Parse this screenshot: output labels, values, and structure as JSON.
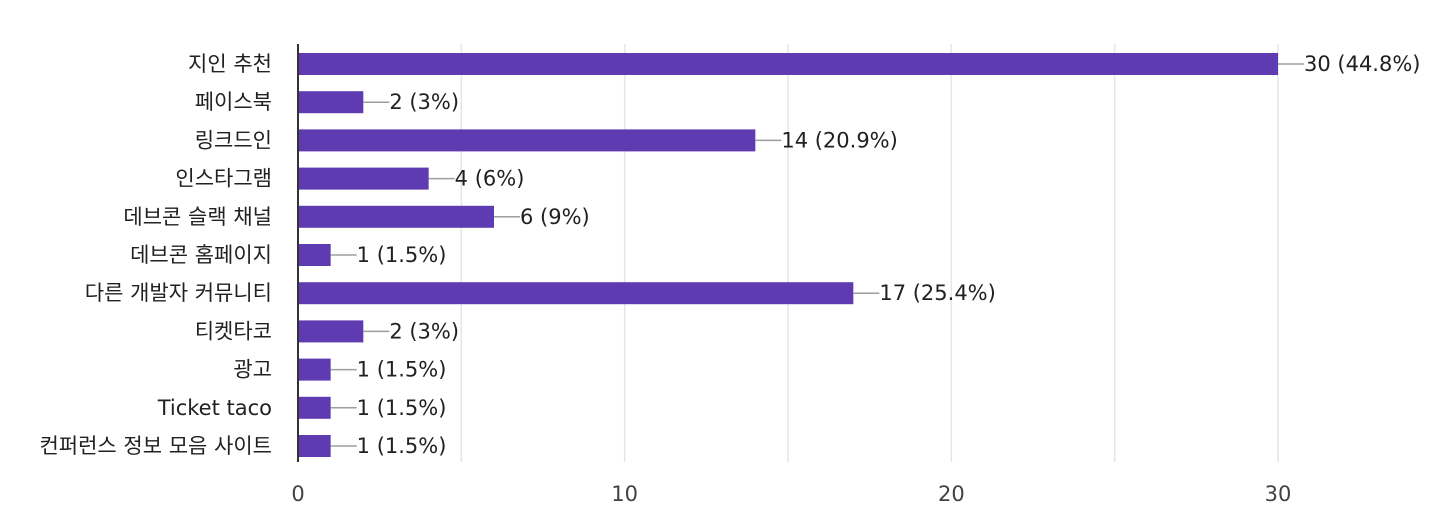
{
  "chart_data": {
    "type": "bar",
    "orientation": "horizontal",
    "categories": [
      "지인 추천",
      "페이스북",
      "링크드인",
      "인스타그램",
      "데브콘 슬랙 채널",
      "데브콘 홈페이지",
      "다른 개발자 커뮤니티",
      "티켓타코",
      "광고",
      "Ticket taco",
      "컨퍼런스 정보 모음 사이트"
    ],
    "values": [
      30,
      2,
      14,
      4,
      6,
      1,
      17,
      2,
      1,
      1,
      1
    ],
    "value_labels": [
      "30 (44.8%)",
      "2 (3%)",
      "14 (20.9%)",
      "4 (6%)",
      "6 (9%)",
      "1 (1.5%)",
      "17 (25.4%)",
      "2 (3%)",
      "1 (1.5%)",
      "1 (1.5%)",
      "1 (1.5%)"
    ],
    "xlim": [
      0,
      30
    ],
    "xticks": [
      0,
      10,
      20,
      30
    ],
    "minor_gridlines": [
      5,
      15,
      25
    ],
    "grid": true,
    "bar_color": "#5e3bb0",
    "gridline_color": "#e6e6e6",
    "axis_color": "#333333",
    "leader_line_color": "#9e9e9e"
  }
}
